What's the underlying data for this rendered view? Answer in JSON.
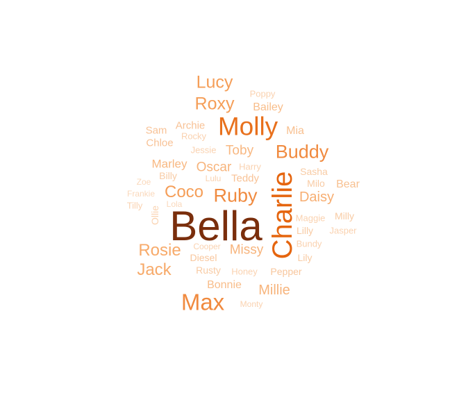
{
  "words": [
    {
      "text": "Bella",
      "color": "#7a2e0c"
    },
    {
      "text": "Charlie",
      "color": "#e5650f"
    },
    {
      "text": "Molly",
      "color": "#e8701c"
    },
    {
      "text": "Max",
      "color": "#f08a3f"
    },
    {
      "text": "Buddy",
      "color": "#f08a3f"
    },
    {
      "text": "Ruby",
      "color": "#f08a3f"
    },
    {
      "text": "Lucy",
      "color": "#f59e58"
    },
    {
      "text": "Roxy",
      "color": "#f59e58"
    },
    {
      "text": "Coco",
      "color": "#f59e58"
    },
    {
      "text": "Rosie",
      "color": "#f7aa6a"
    },
    {
      "text": "Jack",
      "color": "#f7aa6a"
    },
    {
      "text": "Daisy",
      "color": "#f7ae72"
    },
    {
      "text": "Millie",
      "color": "#f7b47c"
    },
    {
      "text": "Missy",
      "color": "#f7b47c"
    },
    {
      "text": "Oscar",
      "color": "#f7b47c"
    },
    {
      "text": "Marley",
      "color": "#f8b882"
    },
    {
      "text": "Toby",
      "color": "#f8b882"
    },
    {
      "text": "Bailey",
      "color": "#f8bd8a"
    },
    {
      "text": "Bonnie",
      "color": "#f8bd8a"
    },
    {
      "text": "Mia",
      "color": "#f8c090"
    },
    {
      "text": "Bear",
      "color": "#f8c090"
    },
    {
      "text": "Sam",
      "color": "#f8c296"
    },
    {
      "text": "Chloe",
      "color": "#f8c296"
    },
    {
      "text": "Archie",
      "color": "#f8c296"
    },
    {
      "text": "Teddy",
      "color": "#f8c296"
    },
    {
      "text": "Pepper",
      "color": "#f8c69c"
    },
    {
      "text": "Diesel",
      "color": "#f8c69c"
    },
    {
      "text": "Milo",
      "color": "#f8cba4"
    },
    {
      "text": "Sasha",
      "color": "#f8cba4"
    },
    {
      "text": "Rusty",
      "color": "#f8cba4"
    },
    {
      "text": "Billy",
      "color": "#f8cba4"
    },
    {
      "text": "Lilly",
      "color": "#f8cba4"
    },
    {
      "text": "Lily",
      "color": "#f8cba4"
    },
    {
      "text": "Milly",
      "color": "#f8cba4"
    },
    {
      "text": "Jasper",
      "color": "#fad2b0"
    },
    {
      "text": "Poppy",
      "color": "#fad2b0"
    },
    {
      "text": "Tilly",
      "color": "#fad2b0"
    },
    {
      "text": "Jessie",
      "color": "#fad2b0"
    },
    {
      "text": "Harry",
      "color": "#fad2b0"
    },
    {
      "text": "Honey",
      "color": "#fad2b0"
    },
    {
      "text": "Ollie",
      "color": "#fad2b0"
    },
    {
      "text": "Rocky",
      "color": "#fad2b0"
    },
    {
      "text": "Maggie",
      "color": "#fad2b0"
    },
    {
      "text": "Bundy",
      "color": "#fad2b0"
    },
    {
      "text": "Cooper",
      "color": "#fad2b0"
    },
    {
      "text": "Monty",
      "color": "#fad2b0"
    },
    {
      "text": "Lulu",
      "color": "#fad2b0"
    },
    {
      "text": "Frankie",
      "color": "#fad8bb"
    },
    {
      "text": "Zoe",
      "color": "#fad8bb"
    },
    {
      "text": "Lola",
      "color": "#fad8bb"
    }
  ]
}
